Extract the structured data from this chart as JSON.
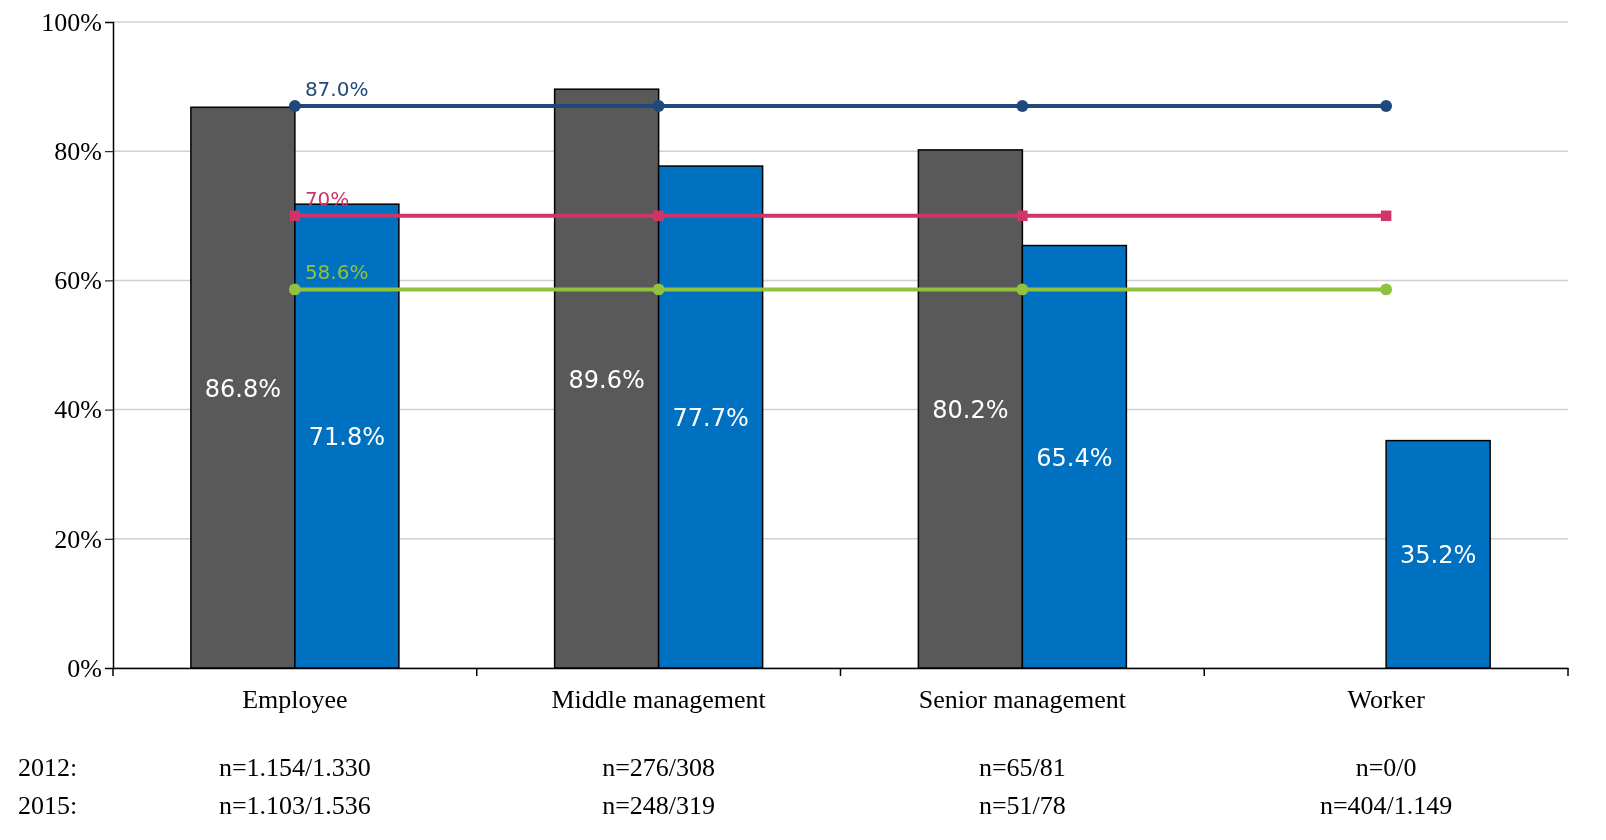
{
  "chart_data": {
    "type": "bar",
    "categories": [
      "Employee",
      "Middle management",
      "Senior management",
      "Worker"
    ],
    "ylim": [
      0,
      100
    ],
    "yticks": [
      {
        "value": 0,
        "label": "0%"
      },
      {
        "value": 20,
        "label": "20%"
      },
      {
        "value": 40,
        "label": "40%"
      },
      {
        "value": 60,
        "label": "60%"
      },
      {
        "value": 80,
        "label": "80%"
      },
      {
        "value": 100,
        "label": "100%"
      }
    ],
    "grid": "y",
    "series": [
      {
        "color": "#595959",
        "values": [
          86.8,
          89.6,
          80.2,
          null
        ],
        "value_labels": [
          "86.8%",
          "89.6%",
          "80.2%",
          null
        ]
      },
      {
        "color": "#0070c0",
        "values": [
          71.8,
          77.7,
          65.4,
          35.2
        ],
        "value_labels": [
          "71.8%",
          "77.7%",
          "65.4%",
          "35.2%"
        ]
      },
      {
        "type": "line",
        "color": "#1f497d",
        "marker": "circle",
        "values": [
          87.0,
          87.0,
          87.0,
          87.0
        ],
        "value_labels": [
          "87.0%",
          null,
          null,
          null
        ]
      },
      {
        "type": "line",
        "color": "#d0356a",
        "marker": "square",
        "values": [
          70,
          70,
          70,
          70
        ],
        "value_labels": [
          "70%",
          null,
          null,
          null
        ]
      },
      {
        "type": "line",
        "color": "#92c13e",
        "marker": "circle",
        "values": [
          58.6,
          58.6,
          58.6,
          58.6
        ],
        "value_labels": [
          "58.6%",
          null,
          null,
          null
        ]
      }
    ],
    "annotations": [
      "2012:",
      "n=1.154/1.330",
      "n=276/308",
      "n=65/81",
      "n=0/0",
      "2015:",
      "n=1.103/1.536",
      "n=248/319",
      "n=51/78",
      "n=404/1.149"
    ]
  }
}
